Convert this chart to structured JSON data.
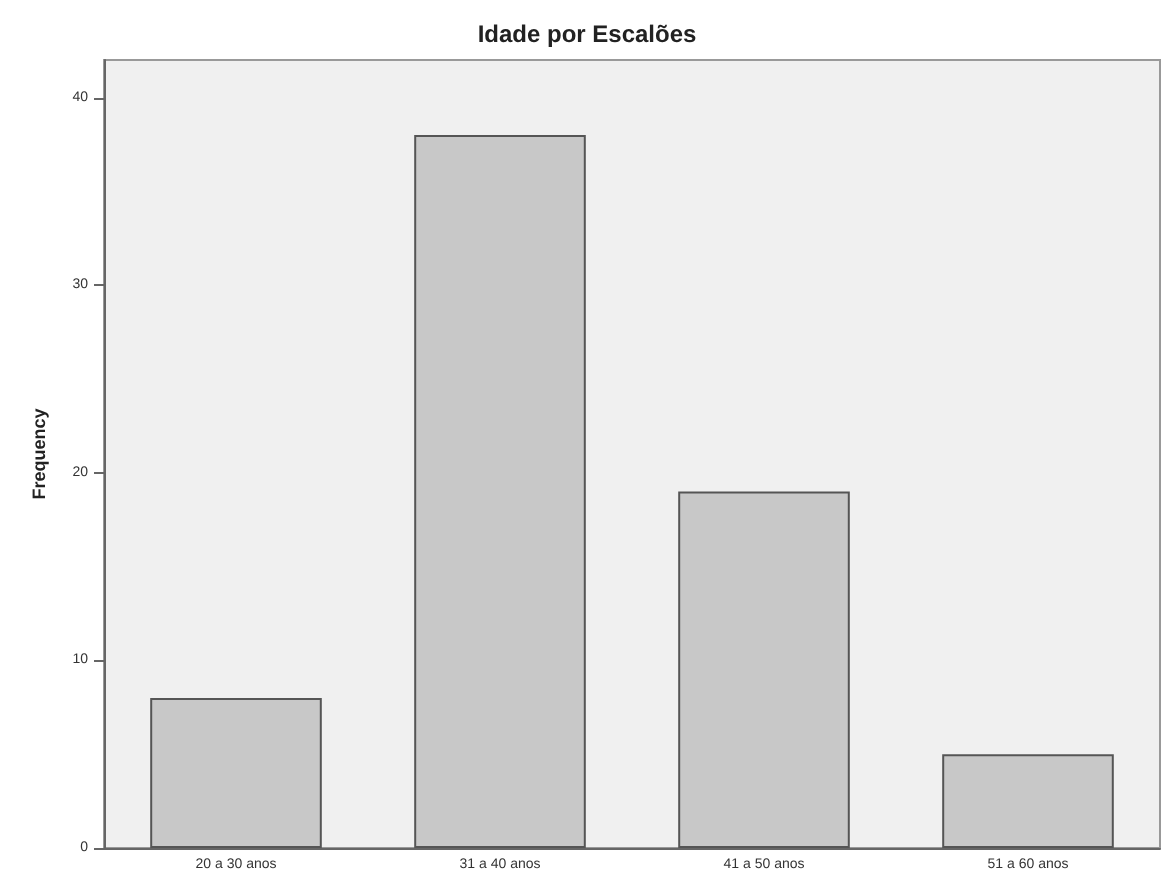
{
  "chart_data": {
    "type": "bar",
    "title": "Idade por Escalões",
    "ylabel": "Frequency",
    "categories": [
      "20 a 30 anos",
      "31 a 40 anos",
      "41 a 50 anos",
      "51 a 60 anos"
    ],
    "values": [
      8,
      38,
      19,
      5
    ],
    "color": "#c8c8c8",
    "ylim": [
      0,
      42
    ],
    "yticks": [
      0,
      10,
      20,
      30,
      40
    ],
    "grid": false
  }
}
